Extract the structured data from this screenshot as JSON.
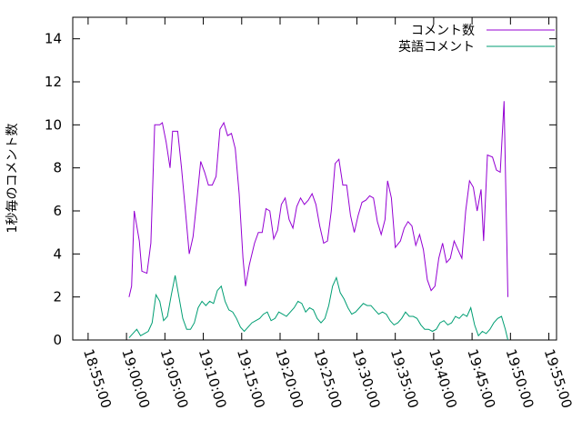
{
  "chart_data": {
    "type": "line",
    "ylabel": "1秒毎のコメント数",
    "xlabel": "",
    "ylim": [
      0,
      15
    ],
    "xlim": [
      "18:53:00",
      "19:56:00"
    ],
    "grid": false,
    "legend_position": "top-right",
    "y_ticks": [
      "0",
      "2",
      "4",
      "6",
      "8",
      "10",
      "12",
      "14"
    ],
    "x_ticks": [
      "18:55:00",
      "19:00:00",
      "19:05:00",
      "19:10:00",
      "19:15:00",
      "19:20:00",
      "19:25:00",
      "19:30:00",
      "19:35:00",
      "19:40:00",
      "19:45:00",
      "19:50:00",
      "19:55:00"
    ],
    "series": [
      {
        "name": "コメント数",
        "color": "#9400d3",
        "points": [
          [
            "19:00:20",
            2.0
          ],
          [
            "19:00:40",
            2.5
          ],
          [
            "19:01:00",
            6.0
          ],
          [
            "19:01:40",
            4.6
          ],
          [
            "19:02:00",
            3.2
          ],
          [
            "19:02:40",
            3.1
          ],
          [
            "19:03:10",
            4.5
          ],
          [
            "19:03:40",
            10.0
          ],
          [
            "19:04:20",
            10.0
          ],
          [
            "19:04:40",
            10.1
          ],
          [
            "19:05:10",
            9.2
          ],
          [
            "19:05:40",
            8.0
          ],
          [
            "19:06:00",
            9.7
          ],
          [
            "19:06:40",
            9.7
          ],
          [
            "19:07:10",
            8.0
          ],
          [
            "19:07:40",
            6.0
          ],
          [
            "19:08:10",
            4.0
          ],
          [
            "19:08:40",
            4.8
          ],
          [
            "19:09:10",
            6.5
          ],
          [
            "19:09:40",
            8.3
          ],
          [
            "19:10:10",
            7.8
          ],
          [
            "19:10:40",
            7.2
          ],
          [
            "19:11:10",
            7.2
          ],
          [
            "19:11:40",
            7.6
          ],
          [
            "19:12:10",
            9.8
          ],
          [
            "19:12:40",
            10.1
          ],
          [
            "19:13:10",
            9.5
          ],
          [
            "19:13:40",
            9.6
          ],
          [
            "19:14:10",
            8.9
          ],
          [
            "19:14:40",
            6.8
          ],
          [
            "19:15:10",
            3.8
          ],
          [
            "19:15:30",
            2.5
          ],
          [
            "19:16:00",
            3.5
          ],
          [
            "19:16:40",
            4.5
          ],
          [
            "19:17:10",
            5.0
          ],
          [
            "19:17:40",
            5.0
          ],
          [
            "19:18:10",
            6.1
          ],
          [
            "19:18:40",
            6.0
          ],
          [
            "19:19:10",
            4.7
          ],
          [
            "19:19:40",
            5.1
          ],
          [
            "19:20:10",
            6.3
          ],
          [
            "19:20:40",
            6.6
          ],
          [
            "19:21:10",
            5.6
          ],
          [
            "19:21:40",
            5.2
          ],
          [
            "19:22:10",
            6.2
          ],
          [
            "19:22:40",
            6.6
          ],
          [
            "19:23:10",
            6.3
          ],
          [
            "19:23:40",
            6.5
          ],
          [
            "19:24:10",
            6.8
          ],
          [
            "19:24:40",
            6.3
          ],
          [
            "19:25:10",
            5.3
          ],
          [
            "19:25:40",
            4.5
          ],
          [
            "19:26:10",
            4.6
          ],
          [
            "19:26:40",
            6.0
          ],
          [
            "19:27:10",
            8.2
          ],
          [
            "19:27:40",
            8.4
          ],
          [
            "19:28:10",
            7.2
          ],
          [
            "19:28:40",
            7.2
          ],
          [
            "19:29:10",
            5.8
          ],
          [
            "19:29:40",
            5.0
          ],
          [
            "19:30:10",
            5.8
          ],
          [
            "19:30:40",
            6.4
          ],
          [
            "19:31:10",
            6.5
          ],
          [
            "19:31:40",
            6.7
          ],
          [
            "19:32:10",
            6.6
          ],
          [
            "19:32:40",
            5.5
          ],
          [
            "19:33:10",
            4.9
          ],
          [
            "19:33:40",
            5.6
          ],
          [
            "19:34:00",
            7.4
          ],
          [
            "19:34:30",
            6.6
          ],
          [
            "19:35:00",
            4.3
          ],
          [
            "19:35:40",
            4.6
          ],
          [
            "19:36:10",
            5.2
          ],
          [
            "19:36:40",
            5.5
          ],
          [
            "19:37:10",
            5.3
          ],
          [
            "19:37:40",
            4.4
          ],
          [
            "19:38:10",
            4.9
          ],
          [
            "19:38:40",
            4.2
          ],
          [
            "19:39:10",
            2.8
          ],
          [
            "19:39:40",
            2.3
          ],
          [
            "19:40:10",
            2.5
          ],
          [
            "19:40:40",
            3.8
          ],
          [
            "19:41:10",
            4.5
          ],
          [
            "19:41:40",
            3.6
          ],
          [
            "19:42:10",
            3.8
          ],
          [
            "19:42:40",
            4.6
          ],
          [
            "19:43:10",
            4.2
          ],
          [
            "19:43:40",
            3.8
          ],
          [
            "19:44:10",
            6.0
          ],
          [
            "19:44:40",
            7.4
          ],
          [
            "19:45:10",
            7.1
          ],
          [
            "19:45:40",
            6.0
          ],
          [
            "19:46:10",
            7.0
          ],
          [
            "19:46:30",
            4.6
          ],
          [
            "19:47:00",
            8.6
          ],
          [
            "19:47:40",
            8.5
          ],
          [
            "19:48:10",
            7.9
          ],
          [
            "19:48:40",
            7.8
          ],
          [
            "19:49:10",
            11.1
          ],
          [
            "19:49:40",
            2.0
          ]
        ]
      },
      {
        "name": "英語コメント",
        "color": "#009e73",
        "points": [
          [
            "19:00:20",
            0.1
          ],
          [
            "19:00:50",
            0.3
          ],
          [
            "19:01:20",
            0.5
          ],
          [
            "19:01:50",
            0.2
          ],
          [
            "19:02:20",
            0.3
          ],
          [
            "19:02:50",
            0.4
          ],
          [
            "19:03:20",
            0.8
          ],
          [
            "19:03:50",
            2.1
          ],
          [
            "19:04:20",
            1.8
          ],
          [
            "19:04:50",
            0.9
          ],
          [
            "19:05:20",
            1.1
          ],
          [
            "19:05:50",
            2.1
          ],
          [
            "19:06:20",
            3.0
          ],
          [
            "19:06:50",
            2.0
          ],
          [
            "19:07:20",
            1.0
          ],
          [
            "19:07:50",
            0.5
          ],
          [
            "19:08:20",
            0.5
          ],
          [
            "19:08:50",
            0.8
          ],
          [
            "19:09:20",
            1.5
          ],
          [
            "19:09:50",
            1.8
          ],
          [
            "19:10:20",
            1.6
          ],
          [
            "19:10:50",
            1.8
          ],
          [
            "19:11:20",
            1.7
          ],
          [
            "19:11:50",
            2.3
          ],
          [
            "19:12:20",
            2.5
          ],
          [
            "19:12:50",
            1.8
          ],
          [
            "19:13:20",
            1.4
          ],
          [
            "19:13:50",
            1.3
          ],
          [
            "19:14:20",
            1.0
          ],
          [
            "19:14:50",
            0.6
          ],
          [
            "19:15:20",
            0.4
          ],
          [
            "19:15:50",
            0.6
          ],
          [
            "19:16:20",
            0.8
          ],
          [
            "19:16:50",
            0.9
          ],
          [
            "19:17:20",
            1.0
          ],
          [
            "19:17:50",
            1.2
          ],
          [
            "19:18:20",
            1.3
          ],
          [
            "19:18:50",
            0.9
          ],
          [
            "19:19:20",
            1.0
          ],
          [
            "19:19:50",
            1.3
          ],
          [
            "19:20:20",
            1.2
          ],
          [
            "19:20:50",
            1.1
          ],
          [
            "19:21:20",
            1.3
          ],
          [
            "19:21:50",
            1.5
          ],
          [
            "19:22:20",
            1.8
          ],
          [
            "19:22:50",
            1.7
          ],
          [
            "19:23:20",
            1.3
          ],
          [
            "19:23:50",
            1.5
          ],
          [
            "19:24:20",
            1.4
          ],
          [
            "19:24:50",
            1.0
          ],
          [
            "19:25:20",
            0.8
          ],
          [
            "19:25:50",
            1.0
          ],
          [
            "19:26:20",
            1.6
          ],
          [
            "19:26:50",
            2.5
          ],
          [
            "19:27:20",
            2.9
          ],
          [
            "19:27:50",
            2.2
          ],
          [
            "19:28:20",
            1.9
          ],
          [
            "19:28:50",
            1.5
          ],
          [
            "19:29:20",
            1.2
          ],
          [
            "19:29:50",
            1.3
          ],
          [
            "19:30:20",
            1.5
          ],
          [
            "19:30:50",
            1.7
          ],
          [
            "19:31:20",
            1.6
          ],
          [
            "19:31:50",
            1.6
          ],
          [
            "19:32:20",
            1.4
          ],
          [
            "19:32:50",
            1.2
          ],
          [
            "19:33:20",
            1.3
          ],
          [
            "19:33:50",
            1.2
          ],
          [
            "19:34:20",
            0.9
          ],
          [
            "19:34:50",
            0.7
          ],
          [
            "19:35:20",
            0.8
          ],
          [
            "19:35:50",
            1.0
          ],
          [
            "19:36:20",
            1.3
          ],
          [
            "19:36:50",
            1.1
          ],
          [
            "19:37:20",
            1.1
          ],
          [
            "19:37:50",
            1.0
          ],
          [
            "19:38:20",
            0.7
          ],
          [
            "19:38:50",
            0.5
          ],
          [
            "19:39:20",
            0.5
          ],
          [
            "19:39:50",
            0.4
          ],
          [
            "19:40:20",
            0.5
          ],
          [
            "19:40:50",
            0.8
          ],
          [
            "19:41:20",
            0.9
          ],
          [
            "19:41:50",
            0.7
          ],
          [
            "19:42:20",
            0.8
          ],
          [
            "19:42:50",
            1.1
          ],
          [
            "19:43:20",
            1.0
          ],
          [
            "19:43:50",
            1.2
          ],
          [
            "19:44:20",
            1.1
          ],
          [
            "19:44:50",
            1.5
          ],
          [
            "19:45:20",
            0.7
          ],
          [
            "19:45:50",
            0.2
          ],
          [
            "19:46:20",
            0.4
          ],
          [
            "19:46:50",
            0.3
          ],
          [
            "19:47:20",
            0.5
          ],
          [
            "19:47:50",
            0.8
          ],
          [
            "19:48:20",
            1.0
          ],
          [
            "19:48:50",
            1.1
          ],
          [
            "19:49:20",
            0.5
          ],
          [
            "19:49:40",
            0.0
          ]
        ]
      }
    ]
  }
}
